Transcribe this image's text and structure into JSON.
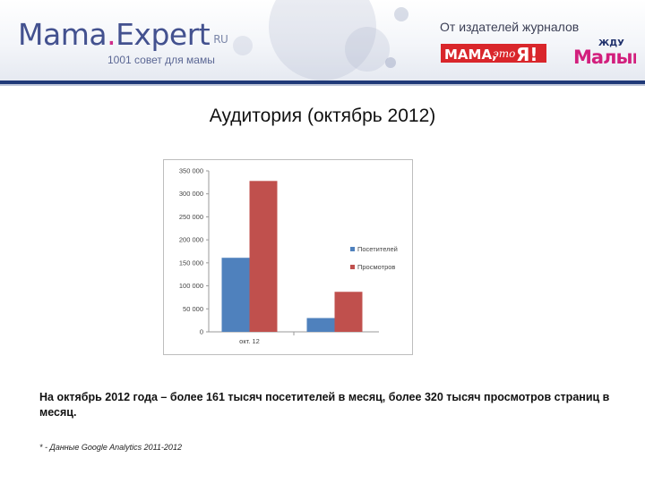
{
  "header": {
    "logo_mama": "Mama",
    "logo_dot": ".",
    "logo_expert": "Expert",
    "logo_ru": "RU",
    "tagline": "1001 совет для мамы",
    "publisher_text": "От издателей журналов",
    "badge_mama": "Мама, это Я!",
    "badge_zhdu": "Жду Малыша",
    "colors": {
      "rule": "#203a78",
      "logo": "#43518f"
    }
  },
  "slide": {
    "title": "Аудитория (октябрь 2012)",
    "description": "На октябрь 2012 года – более 161 тысяч посетителей в месяц, более 320 тысяч просмотров страниц в месяц.",
    "footnote": "* - Данные Google Analytics 2011-2012"
  },
  "chart_data": {
    "type": "bar",
    "categories": [
      "окт. 12",
      ""
    ],
    "series": [
      {
        "name": "Посетителей",
        "values": [
          161000,
          30000
        ],
        "color": "#4f81bd"
      },
      {
        "name": "Просмотров",
        "values": [
          328000,
          87000
        ],
        "color": "#c0504d"
      }
    ],
    "yticks": [
      "0",
      "50 000",
      "100 000",
      "150 000",
      "200 000",
      "250 000",
      "300 000",
      "350 000"
    ],
    "ylim": [
      0,
      350000
    ],
    "grid": false,
    "legend": "right"
  }
}
